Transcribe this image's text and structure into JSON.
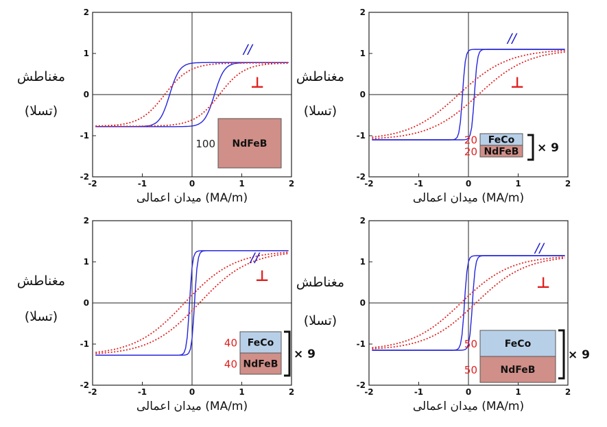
{
  "colors": {
    "parallel": "#2222dd",
    "perpendicular": "#e02020",
    "fecoFill": "#b8cfe8",
    "ndfebFill": "#d08f88",
    "thicknessRed": "#e02020",
    "thicknessDark": "#222222"
  },
  "labels": {
    "ylabel_line1": "مغناطش",
    "ylabel_line2": "(تسلا)",
    "xlabel": "میدان اعمالی (MA/m)",
    "parallel": "//",
    "perpendicular": "⊥",
    "multiplier": "× 9"
  },
  "chart_data": [
    {
      "type": "line",
      "xlim": [
        -2,
        2
      ],
      "ylim": [
        -2,
        2
      ],
      "xticks": [
        "-2",
        "-1",
        "0",
        "1",
        "2"
      ],
      "yticks": [
        "2",
        "1",
        "0",
        "-1",
        "-2"
      ],
      "series": [
        {
          "label": "//",
          "shape": "square",
          "Ms": 0.78,
          "Hc": 0.45,
          "width": 0.2
        },
        {
          "label": "⊥",
          "shape": "soft",
          "Ms": 0.77,
          "Hc": 0.55,
          "width": 0.5
        }
      ],
      "stack": [
        {
          "label": "NdFeB",
          "thickness": "100",
          "material": "ndfeb"
        }
      ],
      "multiplier": false
    },
    {
      "type": "line",
      "xlim": [
        -2,
        2
      ],
      "ylim": [
        -2,
        2
      ],
      "xticks": [
        "-2",
        "-1",
        "0",
        "1",
        "2"
      ],
      "yticks": [
        "2",
        "1",
        "0",
        "-1",
        "-2"
      ],
      "series": [
        {
          "label": "//",
          "shape": "square",
          "Ms": 1.1,
          "Hc": 0.12,
          "width": 0.06
        },
        {
          "label": "⊥",
          "shape": "soft",
          "Ms": 1.1,
          "Hc": 0.2,
          "width": 1.0
        }
      ],
      "stack": [
        {
          "label": "FeCo",
          "thickness": "20",
          "material": "feco"
        },
        {
          "label": "NdFeB",
          "thickness": "20",
          "material": "ndfeb"
        }
      ],
      "multiplier": true
    },
    {
      "type": "line",
      "xlim": [
        -2,
        2
      ],
      "ylim": [
        -2,
        2
      ],
      "xticks": [
        "-2",
        "-1",
        "0",
        "1",
        "2"
      ],
      "yticks": [
        "2",
        "1",
        "0",
        "-1",
        "-2"
      ],
      "series": [
        {
          "label": "//",
          "shape": "square",
          "Ms": 1.27,
          "Hc": 0.05,
          "width": 0.06
        },
        {
          "label": "⊥",
          "shape": "soft",
          "Ms": 1.27,
          "Hc": 0.15,
          "width": 1.0
        }
      ],
      "stack": [
        {
          "label": "FeCo",
          "thickness": "40",
          "material": "feco"
        },
        {
          "label": "NdFeB",
          "thickness": "40",
          "material": "ndfeb"
        }
      ],
      "multiplier": true
    },
    {
      "type": "line",
      "xlim": [
        -2,
        2
      ],
      "ylim": [
        -2,
        2
      ],
      "xticks": [
        "-2",
        "-1",
        "0",
        "1",
        "2"
      ],
      "yticks": [
        "2",
        "1",
        "0",
        "-1",
        "-2"
      ],
      "series": [
        {
          "label": "//",
          "shape": "square",
          "Ms": 1.15,
          "Hc": 0.08,
          "width": 0.06
        },
        {
          "label": "⊥",
          "shape": "soft",
          "Ms": 1.15,
          "Hc": 0.15,
          "width": 1.0
        }
      ],
      "stack": [
        {
          "label": "FeCo",
          "thickness": "50",
          "material": "feco"
        },
        {
          "label": "NdFeB",
          "thickness": "50",
          "material": "ndfeb"
        }
      ],
      "multiplier": true
    }
  ]
}
